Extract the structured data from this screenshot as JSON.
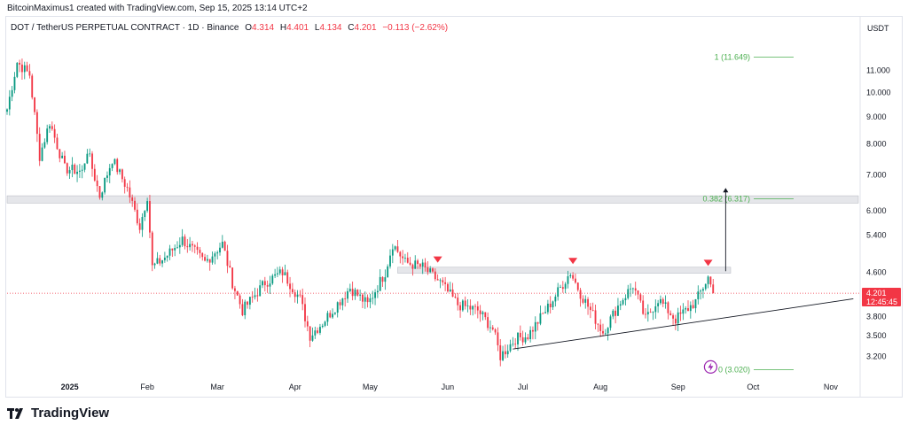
{
  "caption": "BitcoinMaximus1 created with TradingView.com, Sep 15, 2025 13:14 UTC+2",
  "symbol_line": "DOT / TetherUS PERPETUAL CONTRACT · 1D · Binance",
  "ohlc": {
    "open_label": "O",
    "open": "4.314",
    "high_label": "H",
    "high": "4.401",
    "low_label": "L",
    "low": "4.134",
    "close_label": "C",
    "close": "4.201",
    "change": "−0.113 (−2.62%)"
  },
  "currency": "USDT",
  "brand": "TradingView",
  "price_tag": {
    "price": "4.201",
    "countdown": "12:45:45",
    "color": "#f23645"
  },
  "chart_data": {
    "type": "candlestick",
    "y_scale": "log",
    "ylim": [
      2.9,
      12.6
    ],
    "y_ticks": [
      "11.000",
      "10.000",
      "9.000",
      "8.000",
      "7.000",
      "6.000",
      "5.400",
      "4.600",
      "3.800",
      "3.500",
      "3.200"
    ],
    "x_ticks": [
      "2025",
      "Feb",
      "Mar",
      "Apr",
      "May",
      "Jun",
      "Jul",
      "Aug",
      "Sep",
      "Oct",
      "Nov"
    ],
    "x_range": [
      "2024-12-07",
      "2025-11-12"
    ],
    "up_color": "#089981",
    "down_color": "#f23645",
    "anchors": [
      {
        "date": "2024-12-07",
        "price": 9.3
      },
      {
        "date": "2024-12-11",
        "price": 11.4
      },
      {
        "date": "2024-12-16",
        "price": 10.8
      },
      {
        "date": "2024-12-20",
        "price": 7.6
      },
      {
        "date": "2024-12-24",
        "price": 8.8
      },
      {
        "date": "2024-12-30",
        "price": 7.2
      },
      {
        "date": "2025-01-06",
        "price": 7.1
      },
      {
        "date": "2025-01-08",
        "price": 7.8
      },
      {
        "date": "2025-01-13",
        "price": 6.4
      },
      {
        "date": "2025-01-18",
        "price": 7.5
      },
      {
        "date": "2025-01-24",
        "price": 6.6
      },
      {
        "date": "2025-01-29",
        "price": 5.6
      },
      {
        "date": "2025-02-01",
        "price": 6.4
      },
      {
        "date": "2025-02-03",
        "price": 4.7
      },
      {
        "date": "2025-02-08",
        "price": 4.9
      },
      {
        "date": "2025-02-15",
        "price": 5.3
      },
      {
        "date": "2025-02-24",
        "price": 4.8
      },
      {
        "date": "2025-03-03",
        "price": 5.2
      },
      {
        "date": "2025-03-07",
        "price": 4.4
      },
      {
        "date": "2025-03-11",
        "price": 3.9
      },
      {
        "date": "2025-03-20",
        "price": 4.4
      },
      {
        "date": "2025-03-27",
        "price": 4.6
      },
      {
        "date": "2025-04-03",
        "price": 4.1
      },
      {
        "date": "2025-04-07",
        "price": 3.5
      },
      {
        "date": "2025-04-12",
        "price": 3.7
      },
      {
        "date": "2025-04-23",
        "price": 4.3
      },
      {
        "date": "2025-04-30",
        "price": 4.0
      },
      {
        "date": "2025-05-07",
        "price": 4.6
      },
      {
        "date": "2025-05-10",
        "price": 5.2
      },
      {
        "date": "2025-05-15",
        "price": 4.8
      },
      {
        "date": "2025-05-22",
        "price": 4.7
      },
      {
        "date": "2025-05-29",
        "price": 4.4
      },
      {
        "date": "2025-06-05",
        "price": 4.0
      },
      {
        "date": "2025-06-13",
        "price": 3.9
      },
      {
        "date": "2025-06-19",
        "price": 3.6
      },
      {
        "date": "2025-06-22",
        "price": 3.2
      },
      {
        "date": "2025-06-28",
        "price": 3.45
      },
      {
        "date": "2025-07-03",
        "price": 3.5
      },
      {
        "date": "2025-07-11",
        "price": 3.95
      },
      {
        "date": "2025-07-20",
        "price": 4.6
      },
      {
        "date": "2025-07-24",
        "price": 4.2
      },
      {
        "date": "2025-08-02",
        "price": 3.55
      },
      {
        "date": "2025-08-09",
        "price": 4.05
      },
      {
        "date": "2025-08-14",
        "price": 4.35
      },
      {
        "date": "2025-08-19",
        "price": 3.75
      },
      {
        "date": "2025-08-24",
        "price": 4.1
      },
      {
        "date": "2025-08-31",
        "price": 3.75
      },
      {
        "date": "2025-09-08",
        "price": 4.05
      },
      {
        "date": "2025-09-13",
        "price": 4.5
      },
      {
        "date": "2025-09-15",
        "price": 4.201
      }
    ],
    "fib_levels": [
      {
        "label": "1 (11.649)",
        "price": 11.649
      },
      {
        "label": "0.382 (6.317)",
        "price": 6.317
      },
      {
        "label": "0 (3.020)",
        "price": 3.02
      }
    ],
    "resistance_zones": [
      {
        "from": "2024-12-07",
        "to": "2025-11-12",
        "low": 6.2,
        "high": 6.4
      },
      {
        "from": "2025-05-12",
        "to": "2025-09-22",
        "low": 4.58,
        "high": 4.7
      }
    ],
    "support_line": {
      "from": {
        "date": "2025-06-27",
        "price": 3.3
      },
      "to": {
        "date": "2025-11-10",
        "price": 4.1
      }
    },
    "arrow": {
      "date": "2025-09-20",
      "from": 4.62,
      "to": 6.62
    },
    "markers": [
      {
        "date": "2025-05-28",
        "price": 4.85
      },
      {
        "date": "2025-07-21",
        "price": 4.82
      },
      {
        "date": "2025-09-13",
        "price": 4.78
      }
    ],
    "last_price_line": 4.201
  }
}
